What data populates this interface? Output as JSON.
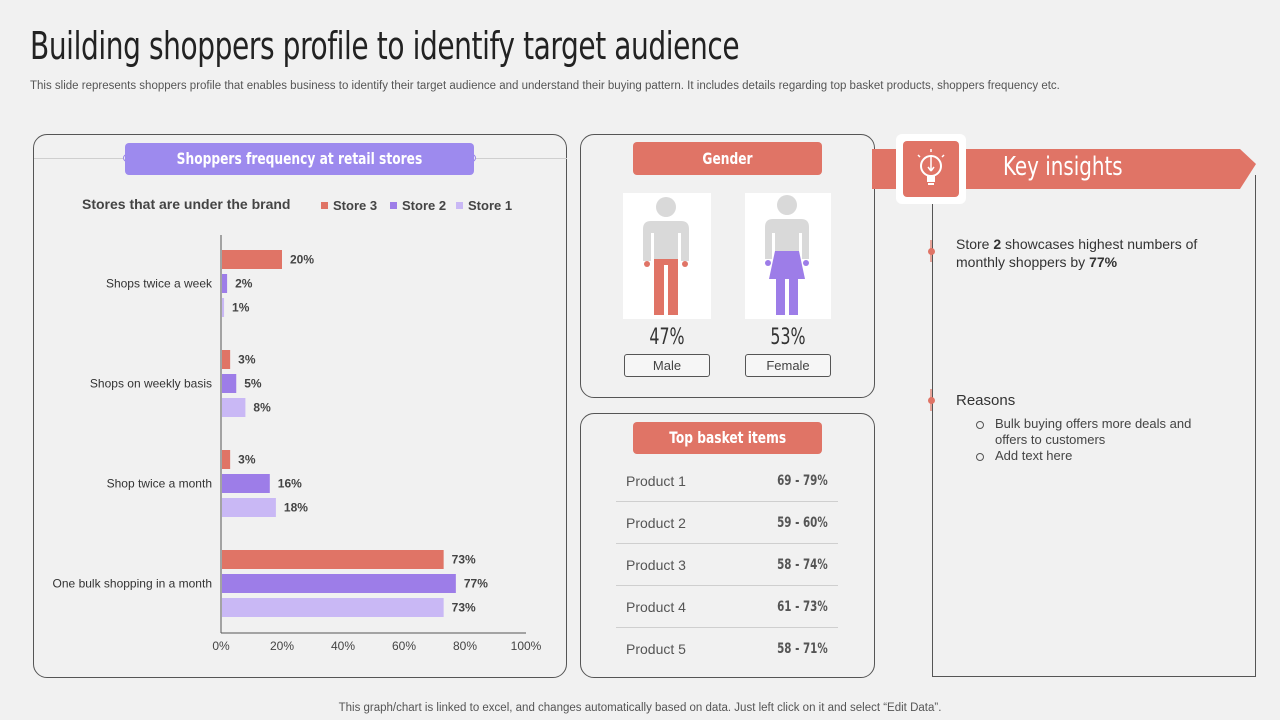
{
  "page": {
    "title": "Building shoppers profile to identify target audience",
    "subtitle": "This slide represents shoppers profile that enables business to identify their target audience and understand their buying pattern. It includes details regarding top basket products, shoppers frequency etc.",
    "footer": "This graph/chart is linked to excel, and changes automatically based on data. Just left click on it and select “Edit Data”."
  },
  "chart_panel": {
    "header": "Shoppers frequency at retail stores"
  },
  "chart_data": {
    "type": "bar",
    "orientation": "horizontal",
    "title": "Stores that are under the brand",
    "categories": [
      "Shops twice a week",
      "Shops on weekly basis",
      "Shop twice a month",
      "One bulk shopping in a month"
    ],
    "series": [
      {
        "name": "Store 3",
        "color": "#e07466",
        "values": [
          20,
          3,
          3,
          73
        ]
      },
      {
        "name": "Store 2",
        "color": "#9d7de8",
        "values": [
          2,
          5,
          16,
          77
        ]
      },
      {
        "name": "Store 1",
        "color": "#c9b8f5",
        "values": [
          1,
          8,
          18,
          73
        ]
      }
    ],
    "legend_order": [
      "Store 3",
      "Store 2",
      "Store 1"
    ],
    "xlim": [
      0,
      100
    ],
    "x_ticks": [
      0,
      20,
      40,
      60,
      80,
      100
    ],
    "value_suffix": "%"
  },
  "gender": {
    "header": "Gender",
    "male": {
      "percent": "47%",
      "label": "Male",
      "color": "#e07466"
    },
    "female": {
      "percent": "53%",
      "label": "Female",
      "color": "#9d7de8"
    }
  },
  "basket": {
    "header": "Top basket items",
    "items": [
      {
        "name": "Product 1",
        "range": "69 - 79%"
      },
      {
        "name": "Product 2",
        "range": "59 - 60%"
      },
      {
        "name": "Product 3",
        "range": "58 - 74%"
      },
      {
        "name": "Product 4",
        "range": "61 - 73%"
      },
      {
        "name": "Product 5",
        "range": "58 - 71%"
      }
    ]
  },
  "insights": {
    "title": "Key insights",
    "icon": "lightbulb-icon",
    "point1": {
      "pre": "Store ",
      "store": "2",
      "mid": " showcases highest numbers of monthly shoppers by ",
      "pct": "77%"
    },
    "reasons_label": "Reasons",
    "reasons": [
      "Bulk buying offers more deals and offers to customers",
      "Add text here"
    ]
  }
}
